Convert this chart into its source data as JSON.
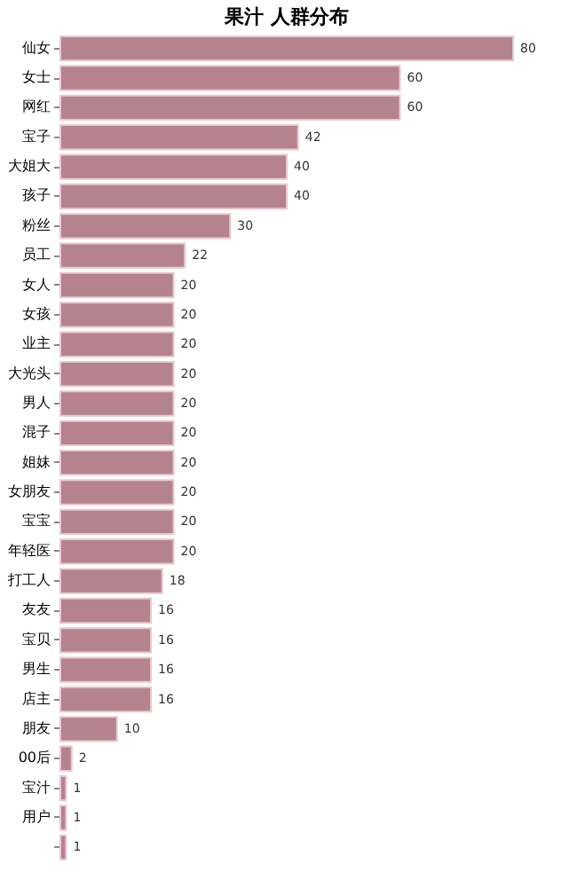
{
  "chart_data": {
    "type": "bar",
    "orientation": "horizontal",
    "title": "果汁 人群分布",
    "categories": [
      "仙女",
      "女士",
      "网红",
      "宝子",
      "大姐大",
      "孩子",
      "粉丝",
      "员工",
      "女人",
      "女孩",
      "业主",
      "大光头",
      "男人",
      "混子",
      "姐妹",
      "女朋友",
      "宝宝",
      "年轻医",
      "打工人",
      "友友",
      "宝贝",
      "男生",
      "店主",
      "朋友",
      "00后",
      "宝汁",
      "用户",
      null
    ],
    "values": [
      80,
      60,
      60,
      42,
      40,
      40,
      30,
      22,
      20,
      20,
      20,
      20,
      20,
      20,
      20,
      20,
      20,
      20,
      18,
      16,
      16,
      16,
      16,
      10,
      2,
      1,
      1,
      1
    ],
    "color": "#b5838d",
    "data_labels": true,
    "grid": false,
    "tick_labels": "y"
  }
}
